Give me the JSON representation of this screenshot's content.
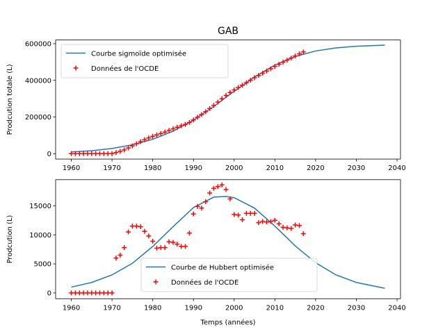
{
  "figure": {
    "title": "GAB"
  },
  "colors": {
    "curve": "#1f77b4",
    "data": "#ff0000"
  },
  "chart_data": [
    {
      "type": "line+scatter",
      "ylabel": "Prodcution totale (L)",
      "xlabel": "",
      "xlim": [
        1956.15,
        2040.85
      ],
      "ylim": [
        -29500,
        620000
      ],
      "xticks": [
        1960,
        1970,
        1980,
        1990,
        2000,
        2010,
        2020,
        2030,
        2040
      ],
      "yticks": [
        0,
        200000,
        400000,
        600000
      ],
      "ytick_labels": [
        "0",
        "200000",
        "400000",
        "600000"
      ],
      "legend": {
        "placement": "upper-left",
        "entries": [
          "Courbe sigmoïde optimisée",
          "Données de l'OCDE"
        ]
      },
      "series": [
        {
          "name": "Courbe sigmoïde optimisée",
          "type": "line",
          "x": [
            1960,
            1965,
            1970,
            1975,
            1980,
            1985,
            1990,
            1995,
            2000,
            2005,
            2010,
            2015,
            2020,
            2025,
            2030,
            2037
          ],
          "y": [
            9000,
            16000,
            28000,
            48000,
            78000,
            122000,
            183000,
            258000,
            340000,
            418000,
            483000,
            530000,
            560000,
            577000,
            586000,
            592000
          ]
        },
        {
          "name": "Données de l'OCDE",
          "type": "scatter",
          "x": [
            1960,
            1961,
            1962,
            1963,
            1964,
            1965,
            1966,
            1967,
            1968,
            1969,
            1970,
            1971,
            1972,
            1973,
            1974,
            1975,
            1976,
            1977,
            1978,
            1979,
            1980,
            1981,
            1982,
            1983,
            1984,
            1985,
            1986,
            1987,
            1988,
            1989,
            1990,
            1991,
            1992,
            1993,
            1994,
            1995,
            1996,
            1997,
            1998,
            1999,
            2000,
            2001,
            2002,
            2003,
            2004,
            2005,
            2006,
            2007,
            2008,
            2009,
            2010,
            2011,
            2012,
            2013,
            2014,
            2015,
            2016,
            2017
          ],
          "y": [
            0,
            0,
            0,
            0,
            0,
            0,
            0,
            0,
            0,
            0,
            0,
            6000,
            12500,
            20300,
            30800,
            42300,
            53800,
            65200,
            75800,
            85600,
            94500,
            102200,
            110000,
            117800,
            126600,
            135300,
            143700,
            151700,
            159700,
            170000,
            183600,
            198500,
            213100,
            228800,
            246000,
            263000,
            281000,
            299600,
            317400,
            333600,
            347100,
            360500,
            373100,
            386800,
            400500,
            414200,
            426300,
            438600,
            450800,
            463100,
            475600,
            487500,
            498800,
            510000,
            521100,
            532800,
            544400,
            554600
          ]
        }
      ]
    },
    {
      "type": "line+scatter",
      "ylabel": "Prodcution (L)",
      "xlabel": "Temps (années)",
      "xlim": [
        1956.15,
        2040.85
      ],
      "ylim": [
        -1000,
        19500
      ],
      "xticks": [
        1960,
        1970,
        1980,
        1990,
        2000,
        2010,
        2020,
        2030,
        2040
      ],
      "yticks": [
        0,
        5000,
        10000,
        15000
      ],
      "ytick_labels": [
        "0",
        "5000",
        "10000",
        "15000"
      ],
      "legend": {
        "placement": "lower-center",
        "entries": [
          "Courbe de Hubbert optimisée",
          "Données de l'OCDE"
        ]
      },
      "series": [
        {
          "name": "Courbe de Hubbert optimisée",
          "type": "line",
          "x": [
            1960,
            1965,
            1970,
            1975,
            1980,
            1985,
            1990,
            1995,
            1998,
            2000,
            2005,
            2010,
            2015,
            2020,
            2025,
            2030,
            2037
          ],
          "y": [
            1000,
            1800,
            3100,
            5100,
            8000,
            11400,
            14700,
            16500,
            16600,
            16400,
            14600,
            11500,
            8100,
            5200,
            3100,
            1800,
            800
          ]
        },
        {
          "name": "Données de l'OCDE",
          "type": "scatter",
          "x": [
            1960,
            1961,
            1962,
            1963,
            1964,
            1965,
            1966,
            1967,
            1968,
            1969,
            1970,
            1971,
            1972,
            1973,
            1974,
            1975,
            1976,
            1977,
            1978,
            1979,
            1980,
            1981,
            1982,
            1983,
            1984,
            1985,
            1986,
            1987,
            1988,
            1989,
            1990,
            1991,
            1992,
            1993,
            1994,
            1995,
            1996,
            1997,
            1998,
            1999,
            2000,
            2001,
            2002,
            2003,
            2004,
            2005,
            2006,
            2007,
            2008,
            2009,
            2010,
            2011,
            2012,
            2013,
            2014,
            2015,
            2016,
            2017
          ],
          "y": [
            0,
            0,
            0,
            0,
            0,
            0,
            0,
            0,
            0,
            0,
            0,
            6000,
            6500,
            7800,
            10500,
            11500,
            11500,
            11400,
            10600,
            9800,
            8900,
            7700,
            7800,
            7800,
            8800,
            8700,
            8400,
            8000,
            8000,
            10300,
            13600,
            14900,
            14600,
            15700,
            17200,
            18000,
            18300,
            18600,
            17800,
            16200,
            13500,
            13400,
            12600,
            13700,
            13700,
            13700,
            12100,
            12300,
            12200,
            12300,
            12500,
            11900,
            11300,
            11200,
            11100,
            11700,
            11600,
            10200
          ]
        }
      ]
    }
  ]
}
